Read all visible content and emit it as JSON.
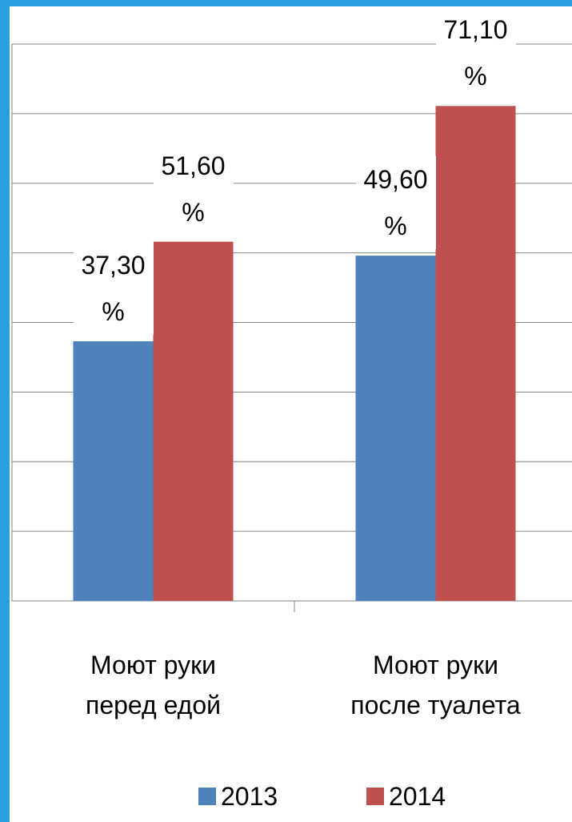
{
  "chart_data": {
    "type": "bar",
    "categories": [
      "Моют руки перед едой",
      "Моют руки после туалета"
    ],
    "series": [
      {
        "name": "2013",
        "color": "#4f81bd",
        "values": [
          37.3,
          49.6
        ],
        "value_labels": [
          "37,30 %",
          "49,60 %"
        ]
      },
      {
        "name": "2014",
        "color": "#c0504d",
        "values": [
          51.6,
          71.1
        ],
        "value_labels": [
          "51,60 %",
          "71,10 %"
        ]
      }
    ],
    "ylim": [
      0,
      80
    ],
    "yticks": [
      0,
      10,
      20,
      30,
      40,
      50,
      60,
      70,
      80
    ],
    "grid": true
  }
}
